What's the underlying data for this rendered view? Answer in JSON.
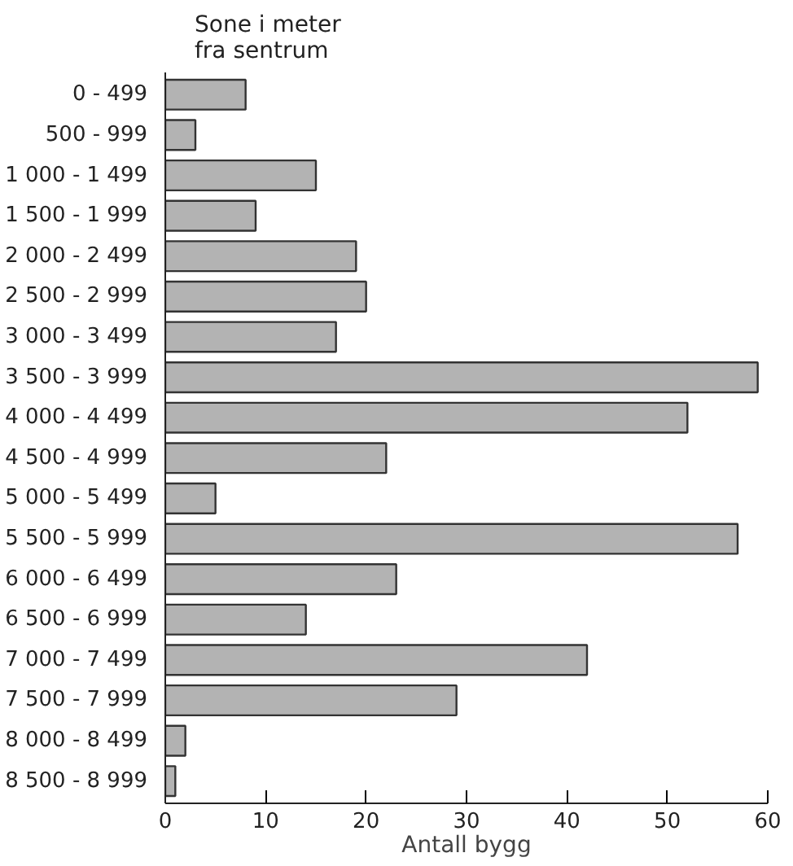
{
  "chart_data": {
    "type": "bar",
    "orientation": "horizontal",
    "ylabel": "Sone i meter\nfra sentrum",
    "xlabel": "Antall bygg",
    "categories": [
      "0 - 499",
      "500 - 999",
      "1 000 - 1 499",
      "1 500 - 1 999",
      "2 000 - 2 499",
      "2 500 - 2 999",
      "3 000 - 3 499",
      "3 500 - 3 999",
      "4 000 - 4 499",
      "4 500 - 4 999",
      "5 000 - 5 499",
      "5 500 - 5 999",
      "6 000 - 6 499",
      "6 500 - 6 999",
      "7 000 - 7 499",
      "7 500 - 7 999",
      "8 000 - 8 499",
      "8 500 - 8 999"
    ],
    "values": [
      8,
      3,
      15,
      9,
      19,
      20,
      17,
      59,
      52,
      22,
      5,
      57,
      23,
      14,
      42,
      29,
      2,
      1
    ],
    "color": "#b3b3b3",
    "xlim": [
      0,
      60
    ],
    "xticks": [
      0,
      10,
      20,
      30,
      40,
      50,
      60
    ],
    "grid": false
  }
}
